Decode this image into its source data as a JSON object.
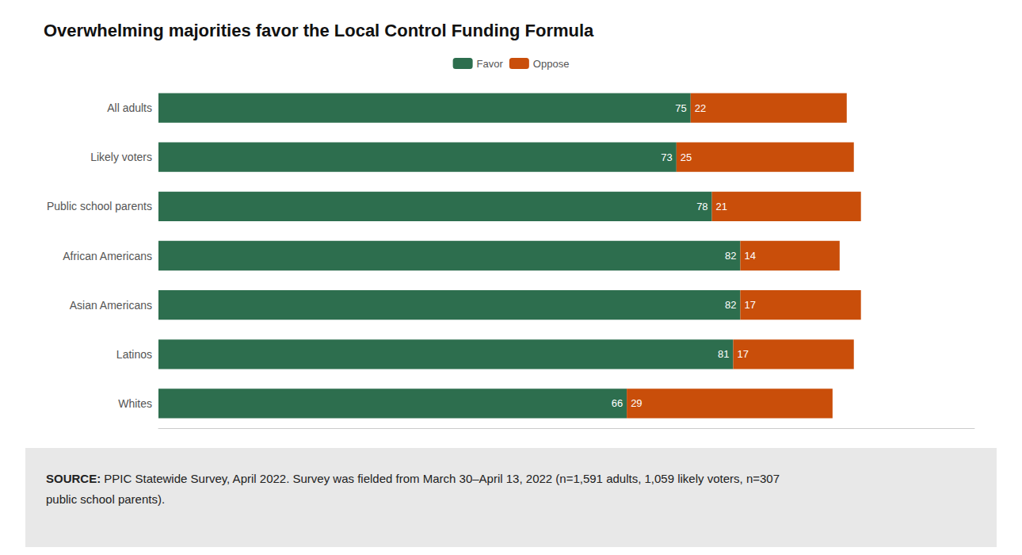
{
  "chart_data": {
    "type": "bar",
    "orientation": "horizontal",
    "stacked": true,
    "data_labels": true,
    "grid": false,
    "legend": "top",
    "tick_labels": "y",
    "title": "Overwhelming majorities favor the Local Control Funding Formula",
    "categories": [
      "All adults",
      "Likely voters",
      "Public school parents",
      "African Americans",
      "Asian Americans",
      "Latinos",
      "Whites"
    ],
    "series": [
      {
        "name": "Favor",
        "color": "#2d6e4e",
        "values": [
          75,
          73,
          78,
          82,
          82,
          81,
          66
        ]
      },
      {
        "name": "Oppose",
        "color": "#c94e0a",
        "values": [
          22,
          25,
          21,
          14,
          17,
          17,
          29
        ]
      }
    ],
    "xlim": [
      0,
      115
    ],
    "footer": {
      "label": "SOURCE:",
      "text": " PPIC Statewide Survey, April 2022. Survey was fielded from March 30–April 13, 2022 (n=1,591 adults, 1,059 likely voters, n=307 public school parents)."
    }
  }
}
